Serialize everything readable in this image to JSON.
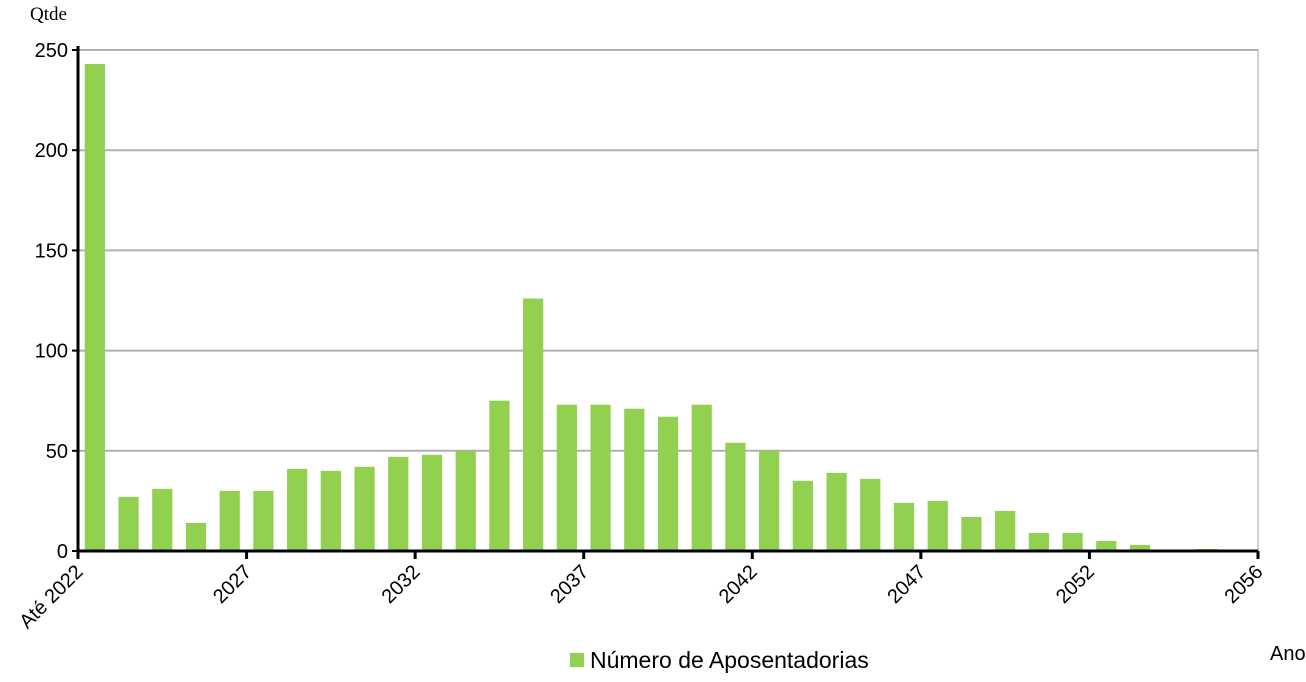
{
  "chart_data": {
    "type": "bar",
    "y_label": "Qtde",
    "x_label": "Ano",
    "categories": [
      "Até 2022",
      null,
      null,
      null,
      null,
      "2027",
      null,
      null,
      null,
      null,
      "2032",
      null,
      null,
      null,
      null,
      "2037",
      null,
      null,
      null,
      null,
      "2042",
      null,
      null,
      null,
      null,
      "2047",
      null,
      null,
      null,
      null,
      "2052",
      null,
      null,
      null,
      "2056"
    ],
    "series": [
      {
        "name": "Número de Aposentadorias",
        "color": "#92d050",
        "values": [
          243,
          27,
          31,
          14,
          30,
          30,
          41,
          40,
          42,
          47,
          48,
          50,
          75,
          126,
          73,
          73,
          71,
          67,
          73,
          54,
          50,
          35,
          39,
          36,
          24,
          25,
          17,
          20,
          9,
          9,
          5,
          3,
          0,
          1,
          0
        ]
      }
    ],
    "ylim": [
      0,
      250
    ],
    "yticks": [
      0,
      50,
      100,
      150,
      200,
      250
    ],
    "grid": true
  }
}
